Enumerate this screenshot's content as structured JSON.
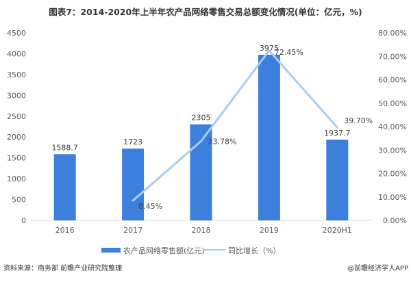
{
  "chart_data": {
    "type": "bar+line",
    "title": "图表7：2014-2020年上半年农产品网络零售交易总额变化情况(单位：亿元，%)",
    "categories": [
      "2016",
      "2017",
      "2018",
      "2019",
      "2020H1"
    ],
    "series": [
      {
        "name": "农产品网络零售额(亿元)",
        "type": "bar",
        "axis": "left",
        "values": [
          1588.7,
          1723,
          2305,
          3975,
          1937.7
        ],
        "labels": [
          "1588.7",
          "1723",
          "2305",
          "3975",
          "1937.7"
        ],
        "color": "#3c7fdc"
      },
      {
        "name": "同比增长（%）",
        "type": "line",
        "axis": "right",
        "values": [
          null,
          8.45,
          33.78,
          72.45,
          39.7
        ],
        "labels": [
          "",
          "8.45%",
          "33.78%",
          "72.45%",
          "39.70%"
        ],
        "color": "#a9cdf0"
      }
    ],
    "left_axis": {
      "ylim": [
        0,
        4500
      ],
      "ticks": [
        "0",
        "500",
        "1000",
        "1500",
        "2000",
        "2500",
        "3000",
        "3500",
        "4000",
        "4500"
      ]
    },
    "right_axis": {
      "ylim": [
        0,
        80
      ],
      "ticks": [
        "0.00%",
        "10.00%",
        "20.00%",
        "30.00%",
        "40.00%",
        "50.00%",
        "60.00%",
        "70.00%",
        "80.00%"
      ]
    },
    "grid": false,
    "legend": "bottom"
  },
  "footer": {
    "source": "资料来源：商务部 前瞻产业研究院整理",
    "credit": "@前瞻经济学人APP"
  }
}
